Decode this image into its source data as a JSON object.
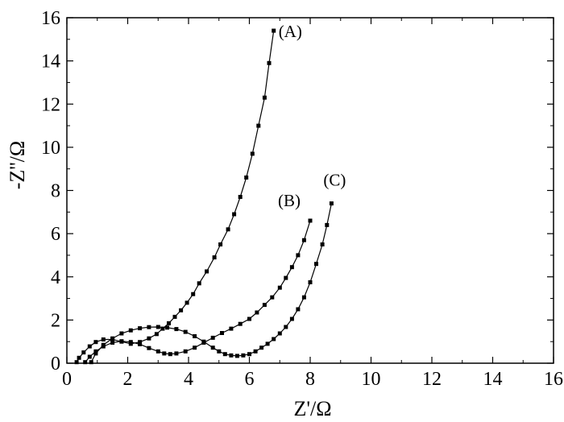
{
  "chart_data": {
    "type": "scatter",
    "title": "",
    "xlabel": "Z'/Ω",
    "ylabel": "-Z''/Ω",
    "xlim": [
      0,
      16
    ],
    "ylim": [
      0,
      16
    ],
    "xticks": [
      "0",
      "2",
      "4",
      "6",
      "8",
      "10",
      "12",
      "14",
      "16"
    ],
    "yticks": [
      "0",
      "2",
      "4",
      "6",
      "8",
      "10",
      "12",
      "14",
      "16"
    ],
    "grid": false,
    "legend": "none",
    "marker": "square",
    "series": [
      {
        "name": "(A)",
        "x": [
          0.32,
          0.4,
          0.55,
          0.75,
          0.95,
          1.2,
          1.5,
          1.8,
          2.1,
          2.4,
          2.7,
          2.95,
          3.15,
          3.35,
          3.55,
          3.75,
          3.95,
          4.15,
          4.35,
          4.6,
          4.85,
          5.05,
          5.3,
          5.5,
          5.7,
          5.9,
          6.1,
          6.3,
          6.5,
          6.65,
          6.8
        ],
        "y": [
          0.05,
          0.25,
          0.5,
          0.78,
          0.98,
          1.1,
          1.1,
          1.0,
          0.9,
          0.98,
          1.15,
          1.35,
          1.6,
          1.85,
          2.15,
          2.45,
          2.8,
          3.2,
          3.7,
          4.25,
          4.9,
          5.5,
          6.2,
          6.9,
          7.7,
          8.6,
          9.7,
          11.0,
          12.3,
          13.9,
          15.4
        ]
      },
      {
        "name": "(B)",
        "x": [
          0.6,
          0.75,
          0.95,
          1.2,
          1.5,
          1.8,
          2.1,
          2.4,
          2.7,
          3.0,
          3.2,
          3.4,
          3.6,
          3.9,
          4.2,
          4.5,
          4.8,
          5.1,
          5.4,
          5.7,
          6.0,
          6.25,
          6.5,
          6.75,
          7.0,
          7.2,
          7.4,
          7.6,
          7.8,
          8.0
        ],
        "y": [
          0.05,
          0.3,
          0.55,
          0.78,
          0.95,
          1.02,
          0.98,
          0.88,
          0.7,
          0.55,
          0.45,
          0.42,
          0.45,
          0.55,
          0.72,
          0.95,
          1.18,
          1.4,
          1.6,
          1.82,
          2.05,
          2.35,
          2.7,
          3.05,
          3.5,
          3.95,
          4.45,
          5.0,
          5.7,
          6.6
        ]
      },
      {
        "name": "(C)",
        "x": [
          0.8,
          0.95,
          1.2,
          1.5,
          1.8,
          2.1,
          2.4,
          2.7,
          3.0,
          3.3,
          3.6,
          3.9,
          4.2,
          4.5,
          4.8,
          5.0,
          5.2,
          5.4,
          5.6,
          5.8,
          6.0,
          6.2,
          6.4,
          6.6,
          6.8,
          7.0,
          7.2,
          7.4,
          7.6,
          7.8,
          8.0,
          8.2,
          8.4,
          8.55,
          8.7
        ],
        "y": [
          0.05,
          0.45,
          0.85,
          1.15,
          1.38,
          1.52,
          1.62,
          1.67,
          1.68,
          1.65,
          1.58,
          1.45,
          1.25,
          1.0,
          0.72,
          0.55,
          0.42,
          0.36,
          0.34,
          0.36,
          0.42,
          0.55,
          0.72,
          0.9,
          1.12,
          1.38,
          1.68,
          2.05,
          2.5,
          3.05,
          3.75,
          4.6,
          5.5,
          6.4,
          7.4
        ]
      }
    ]
  }
}
